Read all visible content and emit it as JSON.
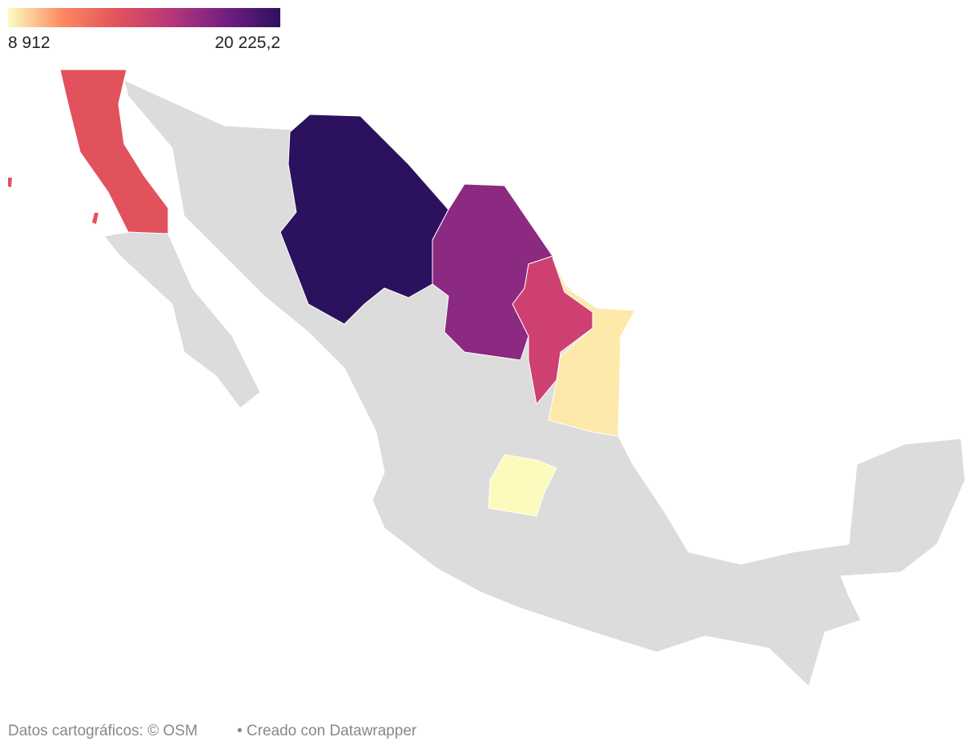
{
  "legend": {
    "min": {
      "value": 8912,
      "label": "8 912"
    },
    "max": {
      "value": 20225.2,
      "label": "20 225,2"
    },
    "colors": [
      "#fcfdbf",
      "#fc8961",
      "#e2525c",
      "#b73779",
      "#721f81",
      "#2c115f"
    ]
  },
  "footer": {
    "source": "Datos cartográficos: © OSM",
    "credit": "• Creado con Datawrapper"
  }
}
